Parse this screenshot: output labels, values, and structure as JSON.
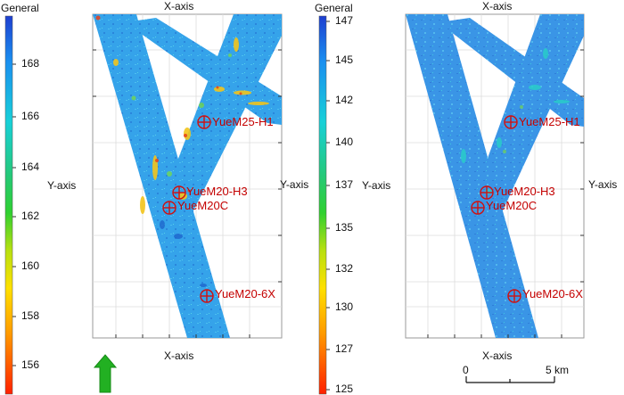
{
  "left_map": {
    "legend_title": "General",
    "legend_ticks": [
      "168",
      "166",
      "164",
      "162",
      "160",
      "158",
      "156"
    ],
    "x_axis_top": "X-axis",
    "x_axis_bottom": "X-axis",
    "y_axis_left": "Y-axis",
    "y_axis_right": "Y-axis",
    "north_arrow": "north-arrow"
  },
  "right_map": {
    "legend_title": "General",
    "legend_ticks": [
      "147",
      "145",
      "142",
      "140",
      "137",
      "135",
      "132",
      "130",
      "127",
      "125"
    ],
    "x_axis_top": "X-axis",
    "x_axis_bottom": "X-axis",
    "y_axis_left": "Y-axis",
    "y_axis_right": "Y-axis",
    "scale_bar": {
      "start": "0",
      "end": "5 km"
    }
  },
  "wells": [
    "YueM25-H1",
    "YueM20-H3",
    "YueM20C",
    "YueM20-6X"
  ],
  "colors": {
    "swath_base": "#2f93e6",
    "well_marker": "#d01010",
    "north_arrow": "#22b022"
  }
}
